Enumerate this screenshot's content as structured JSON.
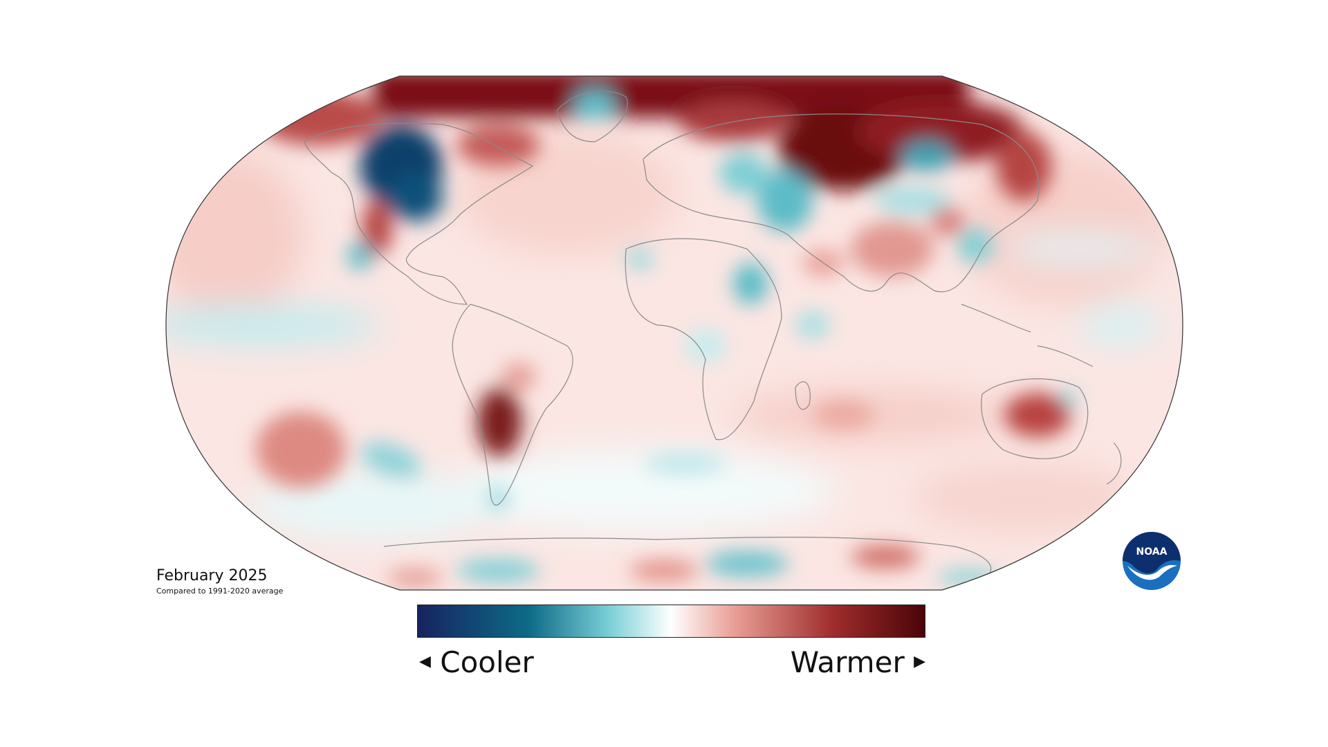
{
  "caption": {
    "title": "February 2025",
    "subtitle": "Compared to 1991-2020 average"
  },
  "scale": {
    "cool_label": "Cooler",
    "warm_label": "Warmer",
    "cool_arrow": "◀",
    "warm_arrow": "▶",
    "colors": [
      "#16235e",
      "#0d6b86",
      "#7cd0d8",
      "#ffffff",
      "#eaa198",
      "#9e2c2c",
      "#4a0407"
    ]
  },
  "logo": {
    "text": "NOAA",
    "icon": "noaa-logo-icon"
  },
  "map": {
    "projection": "Robinson",
    "colors": {
      "land_outline": "#8a8a8a",
      "map_border": "#333333",
      "warm_light": "#f7d4cf",
      "warm_mid": "#d97d73",
      "warm_dark": "#8b1a1a",
      "warm_darkest": "#4a0408",
      "cool_light": "#d3f0f2",
      "cool_mid": "#5bbcc8",
      "cool_dark": "#0d4b74"
    }
  }
}
